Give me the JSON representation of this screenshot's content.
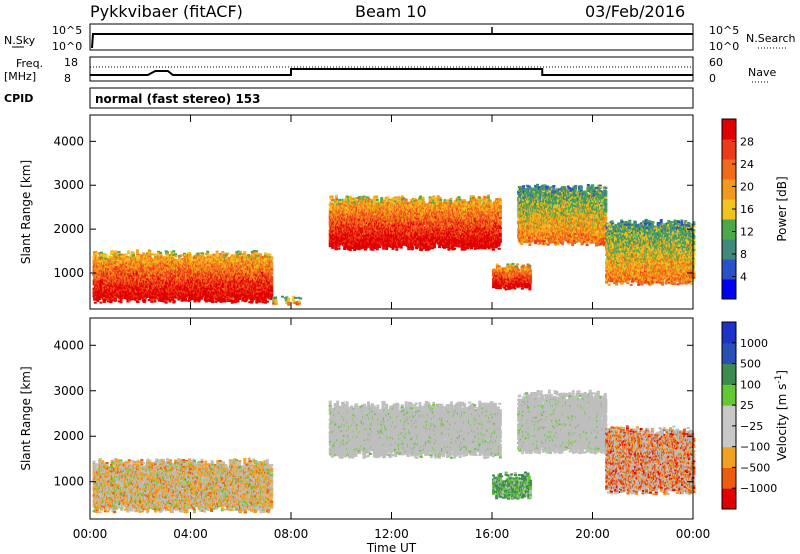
{
  "header": {
    "title": "Pykkvibaer (fitACF)",
    "beam": "Beam 10",
    "date": "03/Feb/2016"
  },
  "noise_panel": {
    "left_label": "N.Sky",
    "right_label": "N.Search",
    "left_ticks": [
      "10^5",
      "10^0"
    ],
    "right_ticks": [
      "10^5",
      "10^0"
    ]
  },
  "freq_panel": {
    "left_label_1": "Freq.",
    "left_label_2": "[MHz]",
    "right_label": "Nave",
    "left_ticks": [
      "18",
      "8"
    ],
    "right_ticks": [
      "60",
      "0"
    ]
  },
  "cpid": {
    "label": "CPID",
    "text": "normal (fast stereo) 153"
  },
  "colors": {
    "power_scale": [
      "#0000ee",
      "#2a52c8",
      "#3f8a7a",
      "#4ca84c",
      "#f2c21e",
      "#f29a1c",
      "#f26a1c",
      "#ee3a1a",
      "#e00000"
    ],
    "velocity_scale": [
      "#e00000",
      "#ee5a10",
      "#f2a020",
      "#c8c8c8",
      "#c8c8c8",
      "#64c832",
      "#3c8c50",
      "#2850b4",
      "#1e32c8"
    ],
    "ground_scatter": "#bebebe"
  },
  "chart_data": [
    {
      "type": "heatmap",
      "panel": "power",
      "ylabel": "Slant Range [km]",
      "x_ticks": [
        "00:00",
        "04:00",
        "08:00",
        "12:00",
        "16:00",
        "20:00",
        "00:00"
      ],
      "y_ticks": [
        "1000",
        "2000",
        "3000",
        "4000"
      ],
      "xlim_hours": [
        0,
        24
      ],
      "ylim_km": [
        180,
        4600
      ],
      "colorbar": {
        "label": "Power [dB]",
        "ticks": [
          "4",
          "8",
          "12",
          "16",
          "20",
          "24",
          "28"
        ],
        "range": [
          0,
          32
        ]
      },
      "regions": [
        {
          "t0": 0.1,
          "t1": 7.2,
          "r0": 300,
          "r1": 1500,
          "level": "high"
        },
        {
          "t0": 7.2,
          "t1": 8.4,
          "r0": 250,
          "r1": 450,
          "level": "medium"
        },
        {
          "t0": 9.5,
          "t1": 16.3,
          "r0": 1500,
          "r1": 2750,
          "level": "high"
        },
        {
          "t0": 16.0,
          "t1": 17.5,
          "r0": 600,
          "r1": 1200,
          "level": "high"
        },
        {
          "t0": 17.0,
          "t1": 20.5,
          "r0": 1600,
          "r1": 3000,
          "level": "medium"
        },
        {
          "t0": 20.5,
          "t1": 24.0,
          "r0": 700,
          "r1": 2200,
          "level": "medium"
        }
      ]
    },
    {
      "type": "heatmap",
      "panel": "velocity",
      "ylabel": "Slant Range [km]",
      "xlabel": "Time UT",
      "x_ticks": [
        "00:00",
        "04:00",
        "08:00",
        "12:00",
        "16:00",
        "20:00",
        "00:00"
      ],
      "y_ticks": [
        "1000",
        "2000",
        "3000",
        "4000"
      ],
      "xlim_hours": [
        0,
        24
      ],
      "ylim_km": [
        180,
        4600
      ],
      "colorbar": {
        "label": "Velocity [m s",
        "label_sup": "-1",
        "label_end": "]",
        "ticks": [
          "1000",
          "500",
          "100",
          "25",
          "−25",
          "−100",
          "−500",
          "−1000"
        ],
        "range": [
          -1000,
          1000
        ]
      },
      "regions": [
        {
          "t0": 0.1,
          "t1": 7.2,
          "r0": 300,
          "r1": 1500,
          "kind": "mixed_ground"
        },
        {
          "t0": 9.5,
          "t1": 16.3,
          "r0": 1500,
          "r1": 2750,
          "kind": "ground"
        },
        {
          "t0": 16.0,
          "t1": 17.5,
          "r0": 600,
          "r1": 1200,
          "kind": "positive"
        },
        {
          "t0": 17.0,
          "t1": 20.5,
          "r0": 1600,
          "r1": 3000,
          "kind": "ground"
        },
        {
          "t0": 20.5,
          "t1": 24.0,
          "r0": 700,
          "r1": 2200,
          "kind": "negative"
        }
      ]
    }
  ]
}
